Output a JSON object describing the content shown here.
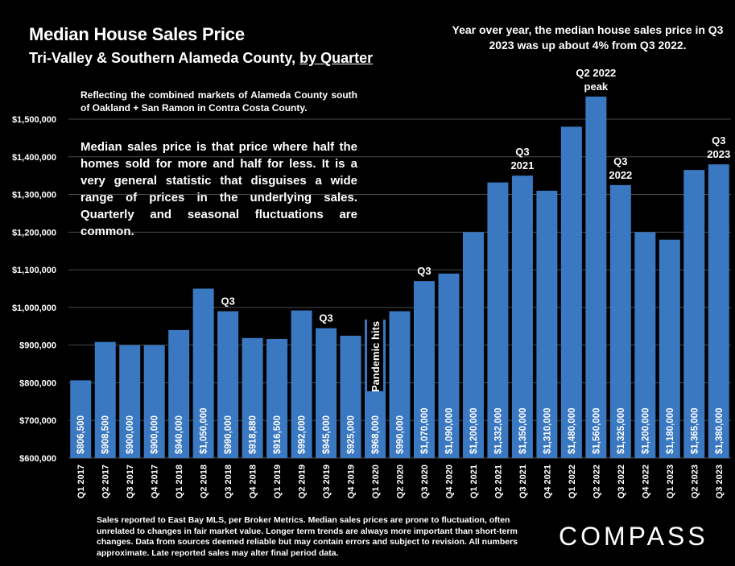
{
  "header": {
    "title": "Median House Sales Price",
    "subtitle_main": "Tri-Valley & Southern Alameda County, ",
    "subtitle_link": "by Quarter"
  },
  "callout_top_right": "Year over year, the median house sales price in Q3 2023 was up about 4% from Q3 2022.",
  "note_region": "Reflecting the combined markets of Alameda County south of Oakland + San Ramon in Contra Costa County.",
  "note_definition": "Median sales price is that price where half the homes sold for more and half for less. It is a very general statistic that disguises a wide range of prices in the underlying sales. Quarterly and seasonal fluctuations are common.",
  "footer_note": "Sales reported to East Bay MLS, per Broker Metrics. Median sales prices are prone to fluctuation, often unrelated to changes in fair market value. Longer term trends are always more important than short-term changes. Data from sources deemed reliable but may contain errors and subject to revision. All numbers approximate. Late reported sales may alter final period data.",
  "logo_text": "COMPASS",
  "colors": {
    "bar": "#3a78c2",
    "background": "#000000",
    "grid": "#4a4a4a",
    "text": "#ffffff"
  },
  "chart_data": {
    "type": "bar",
    "categories": [
      "Q1 2017",
      "Q2 2017",
      "Q3 2017",
      "Q4 2017",
      "Q1 2018",
      "Q2 2018",
      "Q3 2018",
      "Q4 2018",
      "Q1 2019",
      "Q2 2019",
      "Q3 2019",
      "Q4 2019",
      "Q1 2020",
      "Q2 2020",
      "Q3 2020",
      "Q4 2020",
      "Q1 2021",
      "Q2 2021",
      "Q3 2021",
      "Q4 2021",
      "Q1 2022",
      "Q2 2022",
      "Q3 2022",
      "Q4 2022",
      "Q1 2023",
      "Q2 2023",
      "Q3 2023"
    ],
    "values": [
      806500,
      908500,
      900000,
      900000,
      940000,
      1050000,
      990000,
      918880,
      916500,
      992000,
      945000,
      925000,
      968000,
      990000,
      1070000,
      1090000,
      1200000,
      1332000,
      1350000,
      1310000,
      1480000,
      1560000,
      1325000,
      1200000,
      1180000,
      1365000,
      1380000
    ],
    "value_labels": [
      "$806,500",
      "$908,500",
      "$900,000",
      "$900,000",
      "$940,000",
      "$1,050,000",
      "$990,000",
      "$918,880",
      "$916,500",
      "$992,000",
      "$945,000",
      "$925,000",
      "$968,000",
      "$990,000",
      "$1,070,000",
      "$1,090,000",
      "$1,200,000",
      "$1,332,000",
      "$1,350,000",
      "$1,310,000",
      "$1,480,000",
      "$1,560,000",
      "$1,325,000",
      "$1,200,000",
      "$1,180,000",
      "$1,365,000",
      "$1,380,000"
    ],
    "ylim": [
      600000,
      1500000
    ],
    "yticks": [
      600000,
      700000,
      800000,
      900000,
      1000000,
      1100000,
      1200000,
      1300000,
      1400000,
      1500000
    ],
    "ytick_labels": [
      "$600,000",
      "$700,000",
      "$800,000",
      "$900,000",
      "$1,000,000",
      "$1,100,000",
      "$1,200,000",
      "$1,300,000",
      "$1,400,000",
      "$1,500,000"
    ],
    "grid": true,
    "annotations": [
      {
        "index": 6,
        "lines": [
          "Q3"
        ]
      },
      {
        "index": 10,
        "lines": [
          "Q3"
        ]
      },
      {
        "index": 14,
        "lines": [
          "Q3"
        ]
      },
      {
        "index": 18,
        "lines": [
          "Q3",
          "2021"
        ]
      },
      {
        "index": 21,
        "lines": [
          "Q2 2022",
          "peak"
        ]
      },
      {
        "index": 22,
        "lines": [
          "Q3",
          "2022"
        ]
      },
      {
        "index": 26,
        "lines": [
          "Q3",
          "2023"
        ]
      }
    ],
    "vertical_annotation": {
      "index": 12,
      "text": "Pandemic hits"
    }
  }
}
